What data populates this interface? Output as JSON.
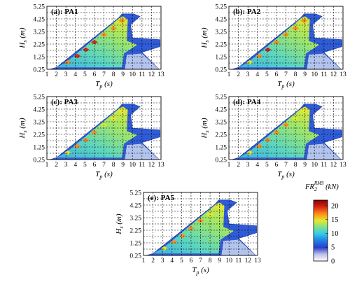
{
  "chart_data": [
    {
      "type": "heatmap",
      "title": "(a): PA1",
      "xlabel_main": "T",
      "xlabel_sub": "p",
      "xlabel_unit": " (s)",
      "ylabel_main": "H",
      "ylabel_sub": "s",
      "ylabel_unit": " (m)",
      "x_ticks": [
        "1",
        "2",
        "3",
        "4",
        "5",
        "6",
        "7",
        "8",
        "9",
        "10",
        "11",
        "12",
        "13"
      ],
      "y_ticks": [
        "0.25",
        "1.25",
        "2.25",
        "3.25",
        "4.25",
        "5.25"
      ],
      "xlim": [
        1,
        13
      ],
      "ylim": [
        0.25,
        5.25
      ],
      "grid": true,
      "peak_points": [
        {
          "x": 3.2,
          "y": 0.8,
          "value": 16
        },
        {
          "x": 4.2,
          "y": 1.3,
          "value": 19
        },
        {
          "x": 5.1,
          "y": 1.8,
          "value": 20
        },
        {
          "x": 6.0,
          "y": 2.4,
          "value": 19
        },
        {
          "x": 7.0,
          "y": 3.0,
          "value": 18
        },
        {
          "x": 8.0,
          "y": 3.5,
          "value": 17
        },
        {
          "x": 8.9,
          "y": 4.1,
          "value": 16
        }
      ]
    },
    {
      "type": "heatmap",
      "title": "(b): PA2",
      "xlabel_main": "T",
      "xlabel_sub": "p",
      "xlabel_unit": " (s)",
      "ylabel_main": "H",
      "ylabel_sub": "s",
      "ylabel_unit": " (m)",
      "x_ticks": [
        "1",
        "2",
        "3",
        "4",
        "5",
        "6",
        "7",
        "8",
        "9",
        "10",
        "11",
        "12",
        "13"
      ],
      "y_ticks": [
        "0.25",
        "1.25",
        "2.25",
        "3.25",
        "4.25",
        "5.25"
      ],
      "xlim": [
        1,
        13
      ],
      "ylim": [
        0.25,
        5.25
      ],
      "grid": true,
      "peak_points": [
        {
          "x": 3.2,
          "y": 0.8,
          "value": 15
        },
        {
          "x": 4.2,
          "y": 1.3,
          "value": 18
        },
        {
          "x": 5.1,
          "y": 1.8,
          "value": 19
        },
        {
          "x": 6.0,
          "y": 2.4,
          "value": 18
        },
        {
          "x": 7.0,
          "y": 3.0,
          "value": 17
        },
        {
          "x": 8.0,
          "y": 3.5,
          "value": 16
        },
        {
          "x": 8.9,
          "y": 4.1,
          "value": 16
        }
      ]
    },
    {
      "type": "heatmap",
      "title": "(c): PA3",
      "xlabel_main": "T",
      "xlabel_sub": "p",
      "xlabel_unit": " (s)",
      "ylabel_main": "H",
      "ylabel_sub": "s",
      "ylabel_unit": " (m)",
      "x_ticks": [
        "1",
        "2",
        "3",
        "4",
        "5",
        "6",
        "7",
        "8",
        "9",
        "10",
        "11",
        "12",
        "13"
      ],
      "y_ticks": [
        "0.25",
        "1.25",
        "2.25",
        "3.25",
        "4.25",
        "5.25"
      ],
      "xlim": [
        1,
        13
      ],
      "ylim": [
        0.25,
        5.25
      ],
      "grid": true,
      "peak_points": [
        {
          "x": 3.2,
          "y": 0.8,
          "value": 14
        },
        {
          "x": 4.2,
          "y": 1.3,
          "value": 16
        },
        {
          "x": 5.1,
          "y": 1.8,
          "value": 17
        },
        {
          "x": 6.0,
          "y": 2.4,
          "value": 16
        },
        {
          "x": 7.0,
          "y": 3.0,
          "value": 15
        },
        {
          "x": 8.0,
          "y": 3.5,
          "value": 15
        },
        {
          "x": 8.9,
          "y": 4.1,
          "value": 14
        }
      ]
    },
    {
      "type": "heatmap",
      "title": "(d): PA4",
      "xlabel_main": "T",
      "xlabel_sub": "p",
      "xlabel_unit": " (s)",
      "ylabel_main": "H",
      "ylabel_sub": "s",
      "ylabel_unit": " (m)",
      "x_ticks": [
        "1",
        "2",
        "3",
        "4",
        "5",
        "6",
        "7",
        "8",
        "9",
        "10",
        "11",
        "12",
        "13"
      ],
      "y_ticks": [
        "0.25",
        "1.25",
        "2.25",
        "3.25",
        "4.25",
        "5.25"
      ],
      "xlim": [
        1,
        13
      ],
      "ylim": [
        0.25,
        5.25
      ],
      "grid": true,
      "peak_points": [
        {
          "x": 3.2,
          "y": 0.8,
          "value": 14
        },
        {
          "x": 4.2,
          "y": 1.3,
          "value": 16
        },
        {
          "x": 5.1,
          "y": 1.8,
          "value": 17
        },
        {
          "x": 6.0,
          "y": 2.4,
          "value": 16
        },
        {
          "x": 7.0,
          "y": 3.0,
          "value": 16
        },
        {
          "x": 8.0,
          "y": 3.5,
          "value": 15
        },
        {
          "x": 8.9,
          "y": 4.1,
          "value": 15
        }
      ]
    },
    {
      "type": "heatmap",
      "title": "(e): PA5",
      "xlabel_main": "T",
      "xlabel_sub": "p",
      "xlabel_unit": " (s)",
      "ylabel_main": "H",
      "ylabel_sub": "s",
      "ylabel_unit": " (m)",
      "x_ticks": [
        "1",
        "2",
        "3",
        "4",
        "5",
        "6",
        "7",
        "8",
        "9",
        "10",
        "11",
        "12",
        "13"
      ],
      "y_ticks": [
        "0.25",
        "1.25",
        "2.25",
        "3.25",
        "4.25",
        "5.25"
      ],
      "xlim": [
        1,
        13
      ],
      "ylim": [
        0.25,
        5.25
      ],
      "grid": true,
      "peak_points": [
        {
          "x": 3.2,
          "y": 0.8,
          "value": 15
        },
        {
          "x": 4.2,
          "y": 1.3,
          "value": 17
        },
        {
          "x": 5.1,
          "y": 1.8,
          "value": 18
        },
        {
          "x": 6.0,
          "y": 2.4,
          "value": 17
        },
        {
          "x": 7.0,
          "y": 3.0,
          "value": 16
        },
        {
          "x": 8.0,
          "y": 3.5,
          "value": 15
        },
        {
          "x": 8.9,
          "y": 4.1,
          "value": 15
        }
      ]
    }
  ],
  "colorbar": {
    "title_main": "FR",
    "title_sub": "2",
    "title_sup": "RMS",
    "title_unit": " (kN)",
    "range": [
      0,
      22
    ],
    "ticks": [
      {
        "value": 0,
        "label": "0"
      },
      {
        "value": 5,
        "label": "5"
      },
      {
        "value": 10,
        "label": "10"
      },
      {
        "value": 15,
        "label": "15"
      },
      {
        "value": 20,
        "label": "20"
      }
    ],
    "colors": [
      "#ffffff",
      "#bcc0ec",
      "#2b3cc9",
      "#1f7ee6",
      "#33c9e6",
      "#7fe08f",
      "#e8e82a",
      "#ff8a1a",
      "#d42514",
      "#8a0000"
    ]
  }
}
